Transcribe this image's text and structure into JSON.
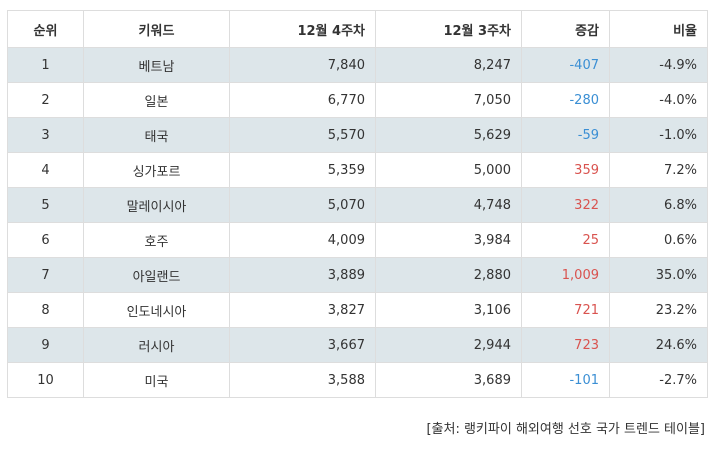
{
  "headers": {
    "rank": "순위",
    "keyword": "키워드",
    "week4": "12월 4주차",
    "week3": "12월 3주차",
    "change": "증감",
    "ratio": "비율"
  },
  "rows": [
    {
      "rank": "1",
      "keyword": "베트남",
      "week4": "7,840",
      "week3": "8,247",
      "change": "-407",
      "ratio": "-4.9%",
      "direction": "down"
    },
    {
      "rank": "2",
      "keyword": "일본",
      "week4": "6,770",
      "week3": "7,050",
      "change": "-280",
      "ratio": "-4.0%",
      "direction": "down"
    },
    {
      "rank": "3",
      "keyword": "태국",
      "week4": "5,570",
      "week3": "5,629",
      "change": "-59",
      "ratio": "-1.0%",
      "direction": "down"
    },
    {
      "rank": "4",
      "keyword": "싱가포르",
      "week4": "5,359",
      "week3": "5,000",
      "change": "359",
      "ratio": "7.2%",
      "direction": "up"
    },
    {
      "rank": "5",
      "keyword": "말레이시아",
      "week4": "5,070",
      "week3": "4,748",
      "change": "322",
      "ratio": "6.8%",
      "direction": "up"
    },
    {
      "rank": "6",
      "keyword": "호주",
      "week4": "4,009",
      "week3": "3,984",
      "change": "25",
      "ratio": "0.6%",
      "direction": "up"
    },
    {
      "rank": "7",
      "keyword": "아일랜드",
      "week4": "3,889",
      "week3": "2,880",
      "change": "1,009",
      "ratio": "35.0%",
      "direction": "up"
    },
    {
      "rank": "8",
      "keyword": "인도네시아",
      "week4": "3,827",
      "week3": "3,106",
      "change": "721",
      "ratio": "23.2%",
      "direction": "up"
    },
    {
      "rank": "9",
      "keyword": "러시아",
      "week4": "3,667",
      "week3": "2,944",
      "change": "723",
      "ratio": "24.6%",
      "direction": "up"
    },
    {
      "rank": "10",
      "keyword": "미국",
      "week4": "3,588",
      "week3": "3,689",
      "change": "-101",
      "ratio": "-2.7%",
      "direction": "down"
    }
  ],
  "source": "[출처: 랭키파이 해외여행 선호 국가 트렌드 테이블]",
  "colors": {
    "stripe": "#dde6ea",
    "border": "#dddddd",
    "negative": "#3b8fd4",
    "positive": "#d9534f"
  }
}
